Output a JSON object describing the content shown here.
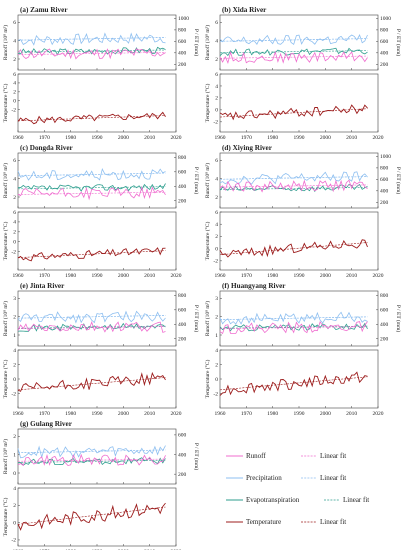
{
  "figure": {
    "x_ticks": [
      "1960",
      "1970",
      "1980",
      "1990",
      "2000",
      "2010",
      "2020"
    ],
    "runoff_ylabel": "Runoff (10⁸ m³)",
    "pet_ylabel": "P / ET (mm)",
    "temp_ylabel": "Temperature (°C)"
  },
  "legend": [
    {
      "label": "Runoff",
      "fit_label": "Linear fit",
      "color": "#f06ccf"
    },
    {
      "label": "Precipitation",
      "fit_label": "Linear fit",
      "color": "#8ebff0"
    },
    {
      "label": "Evapotranspiration",
      "fit_label": "Linear fit",
      "color": "#2e9e8e"
    },
    {
      "label": "Temperature",
      "fit_label": "Linear fit",
      "color": "#9c1c1c"
    }
  ],
  "chart_data": [
    {
      "type": "line",
      "title": "(a) Zamu River",
      "runoff_ticks": [
        "2",
        "4",
        "6"
      ],
      "pet_ticks": [
        "200",
        "400",
        "600",
        "800",
        "1000"
      ],
      "temp_ticks": [
        "-2",
        "0",
        "2",
        "4",
        "6"
      ],
      "runoff_mean": 2.6,
      "precip_mean": 640,
      "et_mean": 430,
      "temp_start": -4.5,
      "temp_end": -3.3
    },
    {
      "type": "line",
      "title": "(b) Xida River",
      "runoff_ticks": [
        "2",
        "4",
        "6"
      ],
      "pet_ticks": [
        "200",
        "400",
        "600",
        "800",
        "1000"
      ],
      "temp_ticks": [
        "-2",
        "0",
        "2",
        "4",
        "6"
      ],
      "runoff_mean": 2.2,
      "precip_mean": 620,
      "et_mean": 420,
      "temp_start": -1.2,
      "temp_end": 0.2
    },
    {
      "type": "line",
      "title": "(c) Dongda River",
      "runoff_ticks": [
        "2",
        "4",
        "6"
      ],
      "pet_ticks": [
        "200",
        "400",
        "600",
        "800"
      ],
      "temp_ticks": [
        "-2",
        "0",
        "2",
        "4",
        "6"
      ],
      "runoff_mean": 2.4,
      "precip_mean": 560,
      "et_mean": 380,
      "temp_start": -3.2,
      "temp_end": -1.8
    },
    {
      "type": "line",
      "title": "(d) Xiying River",
      "runoff_ticks": [
        "2",
        "4",
        "6"
      ],
      "pet_ticks": [
        "200",
        "400",
        "600",
        "800",
        "1000"
      ],
      "temp_ticks": [
        "-2",
        "0",
        "2",
        "4",
        "6"
      ],
      "runoff_mean": 3.2,
      "precip_mean": 620,
      "et_mean": 440,
      "temp_start": -1.0,
      "temp_end": 1.0
    },
    {
      "type": "line",
      "title": "(e) Jinta River",
      "runoff_ticks": [
        "1",
        "2",
        "3"
      ],
      "pet_ticks": [
        "200",
        "400",
        "600",
        "800"
      ],
      "temp_ticks": [
        "-2",
        "0",
        "2",
        "4"
      ],
      "runoff_mean": 1.4,
      "precip_mean": 500,
      "et_mean": 360,
      "temp_start": -1.5,
      "temp_end": 0.2
    },
    {
      "type": "line",
      "title": "(f) Huangyang River",
      "runoff_ticks": [
        "1",
        "2",
        "3"
      ],
      "pet_ticks": [
        "200",
        "400",
        "600",
        "800"
      ],
      "temp_ticks": [
        "-2",
        "0",
        "2",
        "4"
      ],
      "runoff_mean": 1.4,
      "precip_mean": 480,
      "et_mean": 360,
      "temp_start": -1.5,
      "temp_end": 0.3
    },
    {
      "type": "line",
      "title": "(g) Gulang River",
      "runoff_ticks": [
        "0",
        "1",
        "2"
      ],
      "pet_ticks": [
        "200",
        "400",
        "600"
      ],
      "temp_ticks": [
        "-2",
        "0",
        "2",
        "4"
      ],
      "runoff_mean": 0.7,
      "precip_mean": 430,
      "et_mean": 330,
      "temp_start": -0.2,
      "temp_end": 1.8
    }
  ]
}
